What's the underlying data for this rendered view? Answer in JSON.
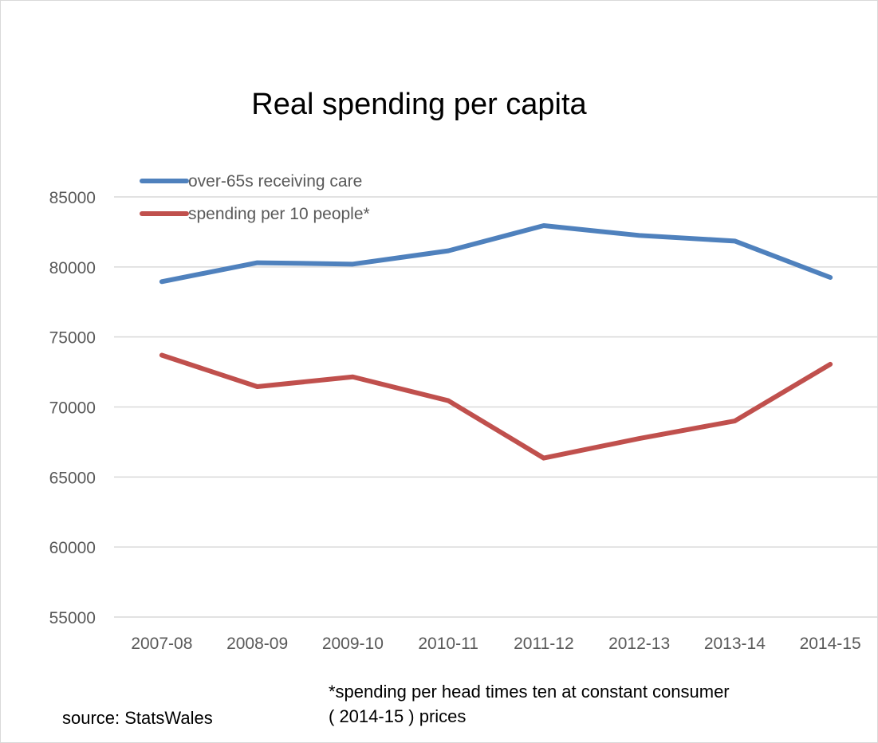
{
  "chart_data": {
    "type": "line",
    "title": "Real spending per capita",
    "xlabel": "",
    "ylabel": "",
    "categories": [
      "2007-08",
      "2008-09",
      "2009-10",
      "2010-11",
      "2011-12",
      "2012-13",
      "2013-14",
      "2014-15"
    ],
    "ylim": [
      55000,
      85000
    ],
    "yticks": [
      "55000",
      "60000",
      "65000",
      "70000",
      "75000",
      "80000",
      "85000"
    ],
    "grid": "horizontal",
    "legend_position": "top-left",
    "series": [
      {
        "name": "over-65s receiving care",
        "color": "#4f81bd",
        "values": [
          78950,
          80300,
          80200,
          81150,
          82950,
          82250,
          81850,
          79250
        ]
      },
      {
        "name": "spending per 10 people*",
        "color": "#c0504d",
        "values": [
          73700,
          71450,
          72150,
          70450,
          66350,
          67750,
          69000,
          73050
        ]
      }
    ]
  },
  "notes": {
    "source": "source: StatsWales",
    "footnote_line1": "*spending per head times ten at constant consumer",
    "footnote_line2": "(  2014-15 ) prices"
  }
}
